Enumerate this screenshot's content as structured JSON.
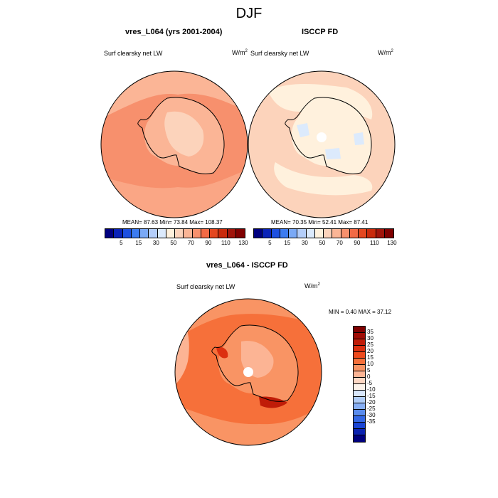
{
  "title": "DJF",
  "chart_data": [
    {
      "type": "heatmap",
      "title": "vres_L064 (yrs 2001-2004)",
      "variable": "Surf clearsky net LW",
      "units": "W/m",
      "units_exp": "2",
      "stats": {
        "mean": "87.63",
        "min": "73.84",
        "max": "108.37"
      },
      "stats_text": "MEAN=  87.63  Min=  73.84  Max=  108.37",
      "colorbar_ticks": [
        "5",
        "15",
        "30",
        "50",
        "70",
        "90",
        "110",
        "130"
      ],
      "colorbar_colors": [
        "#00007f",
        "#0a23b8",
        "#1c4fe0",
        "#3d7cf0",
        "#7aa9f6",
        "#b4cefa",
        "#dceafc",
        "#fff1dd",
        "#fcd3bb",
        "#fbb596",
        "#f7906d",
        "#f26a45",
        "#e4471f",
        "#c92a0b",
        "#a0140a",
        "#7f0000"
      ],
      "projection": "south-polar-stereographic"
    },
    {
      "type": "heatmap",
      "title": "ISCCP FD",
      "variable": "Surf clearsky net LW",
      "units": "W/m",
      "units_exp": "2",
      "stats": {
        "mean": "70.35",
        "min": "52.41",
        "max": "87.41"
      },
      "stats_text": "MEAN=  70.35  Min=  52.41  Max=  87.41",
      "colorbar_ticks": [
        "5",
        "15",
        "30",
        "50",
        "70",
        "90",
        "110",
        "130"
      ],
      "projection": "south-polar-stereographic"
    },
    {
      "type": "heatmap",
      "title": "vres_L064 - ISCCP FD",
      "variable": "Surf clearsky net LW",
      "units": "W/m",
      "units_exp": "2",
      "stats": {
        "min": "0.40",
        "max": "37.12"
      },
      "stats_text": "MIN =   0.40 MAX =  37.12",
      "colorbar_ticks": [
        "35",
        "30",
        "25",
        "20",
        "15",
        "10",
        "5",
        "0",
        "-5",
        "-10",
        "-15",
        "-20",
        "-25",
        "-30",
        "-35"
      ],
      "colorbar_colors": [
        "#7f0000",
        "#a00c05",
        "#c01c08",
        "#dc3010",
        "#ee4a1c",
        "#f6703a",
        "#f99464",
        "#fcb494",
        "#fdd8c4",
        "#fdf3ea",
        "#d9e7fb",
        "#b0cdf8",
        "#86aef4",
        "#5a8cee",
        "#3468e6",
        "#1a45d6",
        "#0b22b0",
        "#00007f"
      ],
      "projection": "south-polar-stereographic"
    }
  ]
}
